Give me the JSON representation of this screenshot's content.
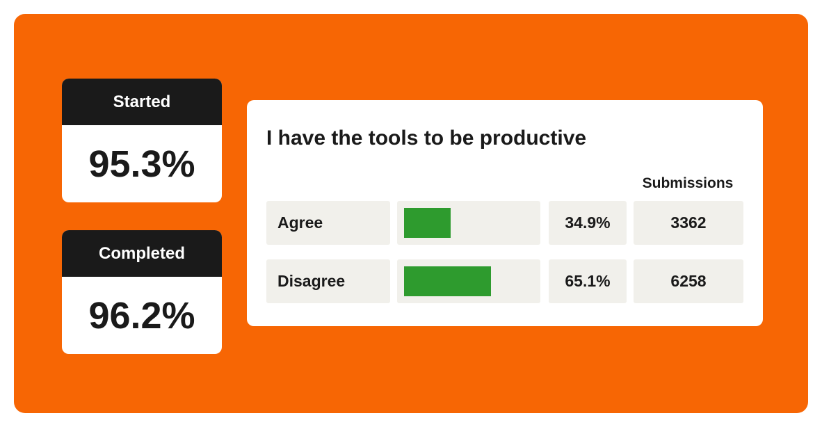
{
  "stats": {
    "started": {
      "label": "Started",
      "value": "95.3%"
    },
    "completed": {
      "label": "Completed",
      "value": "96.2%"
    }
  },
  "survey": {
    "title": "I have the tools to be productive",
    "submissions_header": "Submissions",
    "rows": [
      {
        "label": "Agree",
        "percent": "34.9%",
        "share": 0.349,
        "submissions": "3362"
      },
      {
        "label": "Disagree",
        "percent": "65.1%",
        "share": 0.651,
        "submissions": "6258"
      }
    ]
  },
  "colors": {
    "panel": "#f76604",
    "header": "#1a1a1a",
    "bar": "#2e9b2e",
    "cell": "#f1f0eb"
  }
}
